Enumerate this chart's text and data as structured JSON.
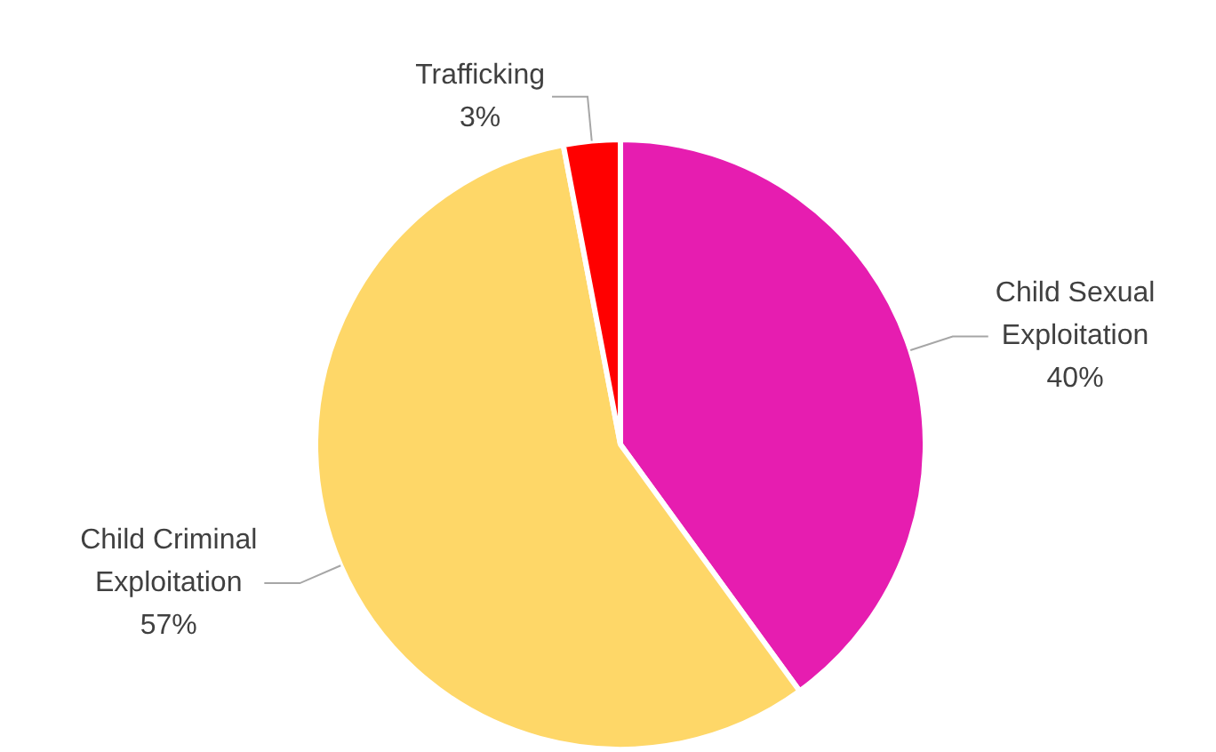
{
  "chart_data": {
    "type": "pie",
    "categories": [
      "Child Sexual Exploitation",
      "Child Criminal Exploitation",
      "Trafficking"
    ],
    "values": [
      40,
      57,
      3
    ],
    "value_labels": [
      "40%",
      "57%",
      "3%"
    ],
    "colors": [
      "#e61db0",
      "#fed768",
      "#ff0000"
    ],
    "legend": false
  }
}
